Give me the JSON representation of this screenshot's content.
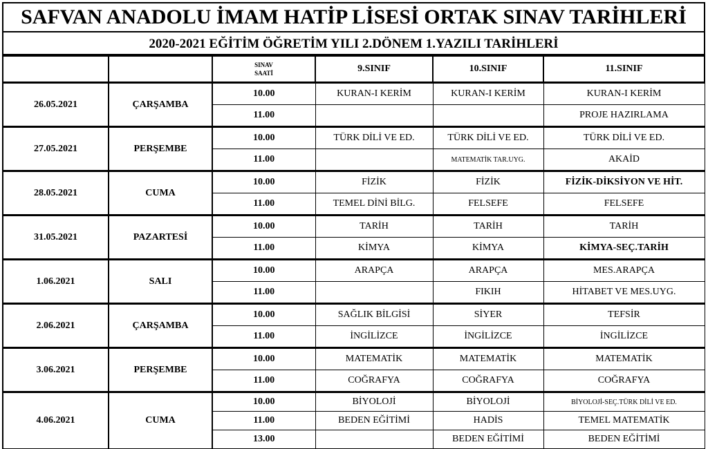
{
  "title": "SAFVAN ANADOLU İMAM HATİP LİSESİ ORTAK SINAV TARİHLERİ",
  "subtitle": "2020-2021 EĞİTİM ÖĞRETİM YILI 2.DÖNEM 1.YAZILI TARİHLERİ",
  "header": {
    "time_line1": "SINAV",
    "time_line2": "SAATİ",
    "c9": "9.SINIF",
    "c10": "10.SINIF",
    "c11": "11.SINIF"
  },
  "days": [
    {
      "date": "26.05.2021",
      "day": "ÇARŞAMBA",
      "rows": [
        [
          "10.00",
          "KURAN-I KERİM",
          "KURAN-I KERİM",
          "KURAN-I KERİM"
        ],
        [
          "11.00",
          "",
          "",
          "PROJE HAZIRLAMA"
        ]
      ]
    },
    {
      "date": "27.05.2021",
      "day": "PERŞEMBE",
      "rows": [
        [
          "10.00",
          "TÜRK DİLİ VE ED.",
          "TÜRK DİLİ VE ED.",
          "TÜRK DİLİ VE ED."
        ],
        [
          "11.00",
          "",
          "MATEMATİK TAR.UYG.",
          "AKAİD"
        ]
      ]
    },
    {
      "date": "28.05.2021",
      "day": "CUMA",
      "rows": [
        [
          "10.00",
          "FİZİK",
          "FİZİK",
          "FİZİK-DİKSİYON VE HİT."
        ],
        [
          "11.00",
          "TEMEL DİNİ BİLG.",
          "FELSEFE",
          "FELSEFE"
        ]
      ]
    },
    {
      "date": "31.05.2021",
      "day": "PAZARTESİ",
      "rows": [
        [
          "10.00",
          "TARİH",
          "TARİH",
          "TARİH"
        ],
        [
          "11.00",
          "KİMYA",
          "KİMYA",
          "KİMYA-SEÇ.TARİH"
        ]
      ]
    },
    {
      "date": "1.06.2021",
      "day": "SALI",
      "rows": [
        [
          "10.00",
          "ARAPÇA",
          "ARAPÇA",
          "MES.ARAPÇA"
        ],
        [
          "11.00",
          "",
          "FIKIH",
          "HİTABET VE MES.UYG."
        ]
      ]
    },
    {
      "date": "2.06.2021",
      "day": "ÇARŞAMBA",
      "rows": [
        [
          "10.00",
          "SAĞLIK BİLGİSİ",
          "SİYER",
          "TEFSİR"
        ],
        [
          "11.00",
          "İNGİLİZCE",
          "İNGİLİZCE",
          "İNGİLİZCE"
        ]
      ]
    },
    {
      "date": "3.06.2021",
      "day": "PERŞEMBE",
      "rows": [
        [
          "10.00",
          "MATEMATİK",
          "MATEMATİK",
          "MATEMATİK"
        ],
        [
          "11.00",
          "COĞRAFYA",
          "COĞRAFYA",
          "COĞRAFYA"
        ]
      ]
    },
    {
      "date": "4.06.2021",
      "day": "CUMA",
      "rows": [
        [
          "10.00",
          "BİYOLOJİ",
          "BİYOLOJİ",
          "BİYOLOJİ-SEÇ.TÜRK DİLİ VE ED."
        ],
        [
          "11.00",
          "BEDEN EĞİTİMİ",
          "HADİS",
          "TEMEL MATEMATİK"
        ],
        [
          "13.00",
          "",
          "BEDEN EĞİTİMİ",
          "BEDEN EĞİTİMİ"
        ]
      ]
    }
  ]
}
